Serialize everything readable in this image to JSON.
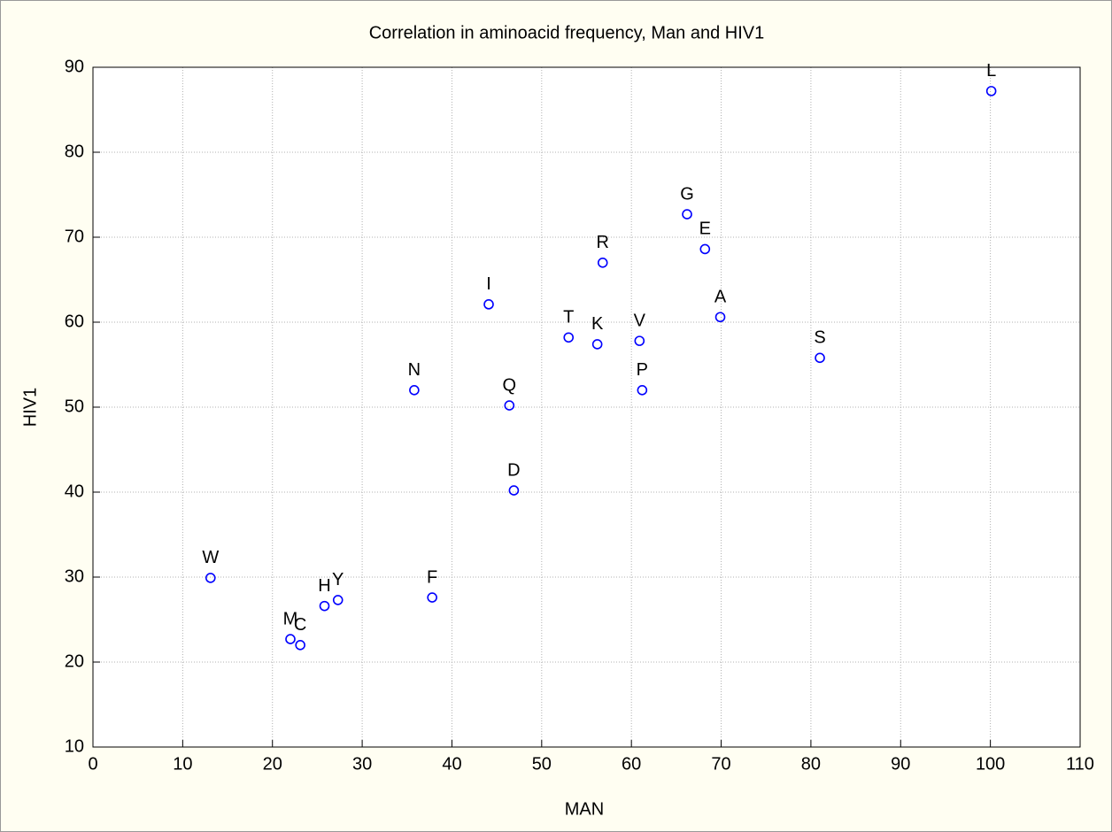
{
  "chart_data": {
    "type": "scatter",
    "title": "Correlation in aminoacid frequency, Man and HIV1",
    "xlabel": "MAN",
    "ylabel": "HIV1",
    "labels": [
      "W",
      "M",
      "C",
      "H",
      "Y",
      "F",
      "N",
      "I",
      "Q",
      "D",
      "T",
      "K",
      "R",
      "V",
      "P",
      "G",
      "E",
      "A",
      "S",
      "L"
    ],
    "x": [
      13.1,
      22.0,
      23.1,
      25.8,
      27.3,
      37.8,
      35.8,
      44.1,
      46.4,
      46.9,
      53.0,
      56.2,
      56.8,
      60.9,
      61.2,
      66.2,
      68.2,
      69.9,
      81.0,
      100.1
    ],
    "values": [
      29.9,
      22.7,
      22.0,
      26.6,
      27.3,
      27.6,
      52.0,
      62.1,
      50.2,
      40.2,
      58.2,
      57.4,
      67.0,
      57.8,
      52.0,
      72.7,
      68.6,
      60.6,
      55.8,
      87.2
    ],
    "color": "#0000ff",
    "xlim": [
      0,
      110
    ],
    "xticks": [
      0,
      10,
      20,
      30,
      40,
      50,
      60,
      70,
      80,
      90,
      100,
      110
    ],
    "ylim": [
      10,
      90
    ],
    "yticks": [
      10,
      20,
      30,
      40,
      50,
      60,
      70,
      80,
      90
    ],
    "grid": true
  }
}
